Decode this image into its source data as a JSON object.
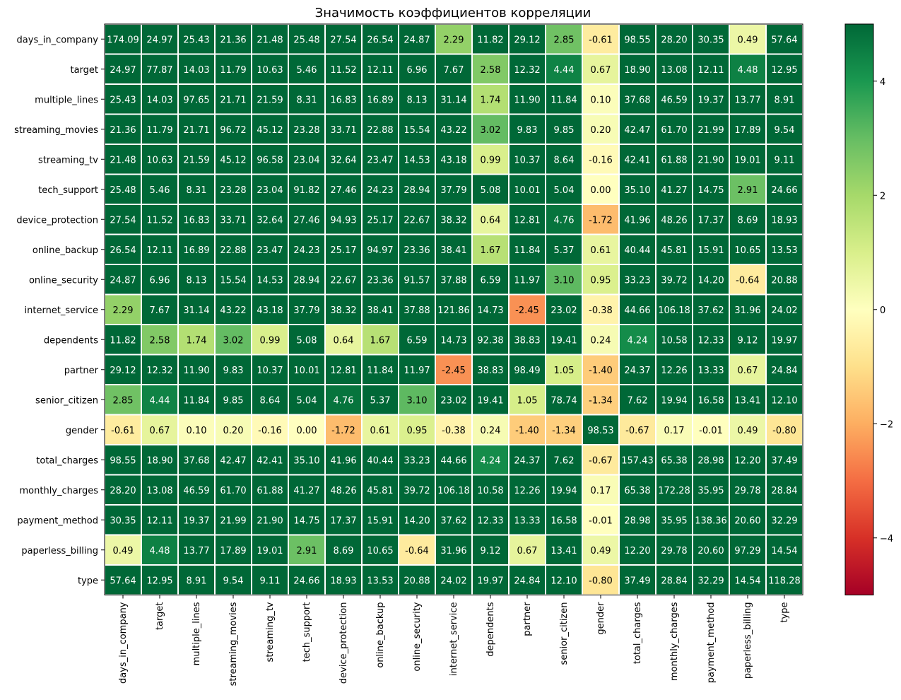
{
  "chart_data": {
    "type": "heatmap",
    "title": "Значимость коэффициентов корреляции",
    "rows": [
      "days_in_company",
      "target",
      "multiple_lines",
      "streaming_movies",
      "streaming_tv",
      "tech_support",
      "device_protection",
      "online_backup",
      "online_security",
      "internet_service",
      "dependents",
      "partner",
      "senior_citizen",
      "gender",
      "total_charges",
      "monthly_charges",
      "payment_method",
      "paperless_billing",
      "type"
    ],
    "columns": [
      "days_in_company",
      "target",
      "multiple_lines",
      "streaming_movies",
      "streaming_tv",
      "tech_support",
      "device_protection",
      "online_backup",
      "online_security",
      "internet_service",
      "dependents",
      "partner",
      "senior_citizen",
      "gender",
      "total_charges",
      "monthly_charges",
      "payment_method",
      "paperless_billing",
      "type"
    ],
    "values": [
      [
        174.09,
        24.97,
        25.43,
        21.36,
        21.48,
        25.48,
        27.54,
        26.54,
        24.87,
        2.29,
        11.82,
        29.12,
        2.85,
        -0.61,
        98.55,
        28.2,
        30.35,
        0.49,
        57.64
      ],
      [
        24.97,
        77.87,
        14.03,
        11.79,
        10.63,
        5.46,
        11.52,
        12.11,
        6.96,
        7.67,
        2.58,
        12.32,
        4.44,
        0.67,
        18.9,
        13.08,
        12.11,
        4.48,
        12.95
      ],
      [
        25.43,
        14.03,
        97.65,
        21.71,
        21.59,
        8.31,
        16.83,
        16.89,
        8.13,
        31.14,
        1.74,
        11.9,
        11.84,
        0.1,
        37.68,
        46.59,
        19.37,
        13.77,
        8.91
      ],
      [
        21.36,
        11.79,
        21.71,
        96.72,
        45.12,
        23.28,
        33.71,
        22.88,
        15.54,
        43.22,
        3.02,
        9.83,
        9.85,
        0.2,
        42.47,
        61.7,
        21.99,
        17.89,
        9.54
      ],
      [
        21.48,
        10.63,
        21.59,
        45.12,
        96.58,
        23.04,
        32.64,
        23.47,
        14.53,
        43.18,
        0.99,
        10.37,
        8.64,
        -0.16,
        42.41,
        61.88,
        21.9,
        19.01,
        9.11
      ],
      [
        25.48,
        5.46,
        8.31,
        23.28,
        23.04,
        91.82,
        27.46,
        24.23,
        28.94,
        37.79,
        5.08,
        10.01,
        5.04,
        -0.0,
        35.1,
        41.27,
        14.75,
        2.91,
        24.66
      ],
      [
        27.54,
        11.52,
        16.83,
        33.71,
        32.64,
        27.46,
        94.93,
        25.17,
        22.67,
        38.32,
        0.64,
        12.81,
        4.76,
        -1.72,
        41.96,
        48.26,
        17.37,
        8.69,
        18.93
      ],
      [
        26.54,
        12.11,
        16.89,
        22.88,
        23.47,
        24.23,
        25.17,
        94.97,
        23.36,
        38.41,
        1.67,
        11.84,
        5.37,
        0.61,
        40.44,
        45.81,
        15.91,
        10.65,
        13.53
      ],
      [
        24.87,
        6.96,
        8.13,
        15.54,
        14.53,
        28.94,
        22.67,
        23.36,
        91.57,
        37.88,
        6.59,
        11.97,
        3.1,
        0.95,
        33.23,
        39.72,
        14.2,
        -0.64,
        20.88
      ],
      [
        2.29,
        7.67,
        31.14,
        43.22,
        43.18,
        37.79,
        38.32,
        38.41,
        37.88,
        121.86,
        14.73,
        -2.45,
        23.02,
        -0.38,
        44.66,
        106.18,
        37.62,
        31.96,
        24.02
      ],
      [
        11.82,
        2.58,
        1.74,
        3.02,
        0.99,
        5.08,
        0.64,
        1.67,
        6.59,
        14.73,
        92.38,
        38.83,
        19.41,
        0.24,
        4.24,
        10.58,
        12.33,
        9.12,
        19.97
      ],
      [
        29.12,
        12.32,
        11.9,
        9.83,
        10.37,
        10.01,
        12.81,
        11.84,
        11.97,
        -2.45,
        38.83,
        98.49,
        1.05,
        -1.4,
        24.37,
        12.26,
        13.33,
        0.67,
        24.84
      ],
      [
        2.85,
        4.44,
        11.84,
        9.85,
        8.64,
        5.04,
        4.76,
        5.37,
        3.1,
        23.02,
        19.41,
        1.05,
        78.74,
        -1.34,
        7.62,
        19.94,
        16.58,
        13.41,
        12.1
      ],
      [
        -0.61,
        0.67,
        0.1,
        0.2,
        -0.16,
        -0.0,
        -1.72,
        0.61,
        0.95,
        -0.38,
        0.24,
        -1.4,
        -1.34,
        98.53,
        -0.67,
        0.17,
        -0.01,
        0.49,
        -0.8
      ],
      [
        98.55,
        18.9,
        37.68,
        42.47,
        42.41,
        35.1,
        41.96,
        40.44,
        33.23,
        44.66,
        4.24,
        24.37,
        7.62,
        -0.67,
        157.43,
        65.38,
        28.98,
        12.2,
        37.49
      ],
      [
        28.2,
        13.08,
        46.59,
        61.7,
        61.88,
        41.27,
        48.26,
        45.81,
        39.72,
        106.18,
        10.58,
        12.26,
        19.94,
        0.17,
        65.38,
        172.28,
        35.95,
        29.78,
        28.84
      ],
      [
        30.35,
        12.11,
        19.37,
        21.99,
        21.9,
        14.75,
        17.37,
        15.91,
        14.2,
        37.62,
        12.33,
        13.33,
        16.58,
        -0.01,
        28.98,
        35.95,
        138.36,
        20.6,
        32.29
      ],
      [
        0.49,
        4.48,
        13.77,
        17.89,
        19.01,
        2.91,
        8.69,
        10.65,
        -0.64,
        31.96,
        9.12,
        0.67,
        13.41,
        0.49,
        12.2,
        29.78,
        20.6,
        97.29,
        14.54
      ],
      [
        57.64,
        12.95,
        8.91,
        9.54,
        9.11,
        24.66,
        18.93,
        13.53,
        20.88,
        24.02,
        19.97,
        24.84,
        12.1,
        -0.8,
        37.49,
        28.84,
        32.29,
        14.54,
        118.28
      ]
    ],
    "value_format": "2 decimals",
    "colormap": "RdYlGn",
    "vmin": -5,
    "vmax": 5,
    "colorbar": {
      "ticks": [
        -4,
        -2,
        0,
        2,
        4
      ],
      "tick_labels": [
        "−4",
        "−2",
        "0",
        "2",
        "4"
      ],
      "placement": "right"
    },
    "grid_lines": "white",
    "legend": "none"
  }
}
